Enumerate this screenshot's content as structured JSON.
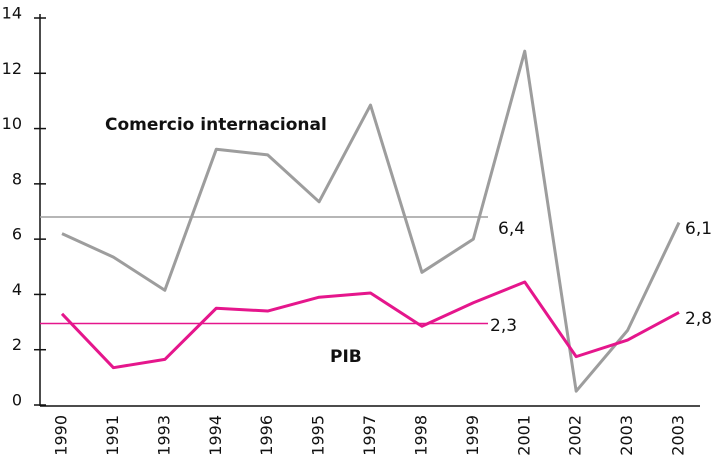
{
  "chart_data": {
    "type": "line",
    "categories": [
      "1990",
      "1991",
      "1993",
      "1994",
      "1996",
      "1995",
      "1997",
      "1998",
      "1999",
      "2001",
      "2002",
      "2003",
      "2003"
    ],
    "series": [
      {
        "name": "Comercio internacional",
        "color": "#9d9d9d",
        "values": [
          6.2,
          5.35,
          4.15,
          9.25,
          9.05,
          7.35,
          10.85,
          4.8,
          6.0,
          12.8,
          0.5,
          2.7,
          6.6
        ]
      },
      {
        "name": "PIB",
        "color": "#e5168c",
        "values": [
          3.3,
          1.35,
          1.65,
          3.5,
          3.4,
          3.9,
          4.05,
          2.85,
          3.7,
          4.45,
          1.75,
          2.35,
          3.35
        ]
      }
    ],
    "reference_lines": [
      {
        "value": 6.8,
        "color": "#9d9d9d"
      },
      {
        "value": 2.95,
        "color": "#e5168c"
      }
    ],
    "annotations": [
      "6,4",
      "2,3",
      "6,1",
      "2,8"
    ],
    "ylim": [
      0,
      14
    ],
    "yticks": [
      0,
      2,
      4,
      6,
      8,
      10,
      12,
      14
    ],
    "grid": false
  }
}
